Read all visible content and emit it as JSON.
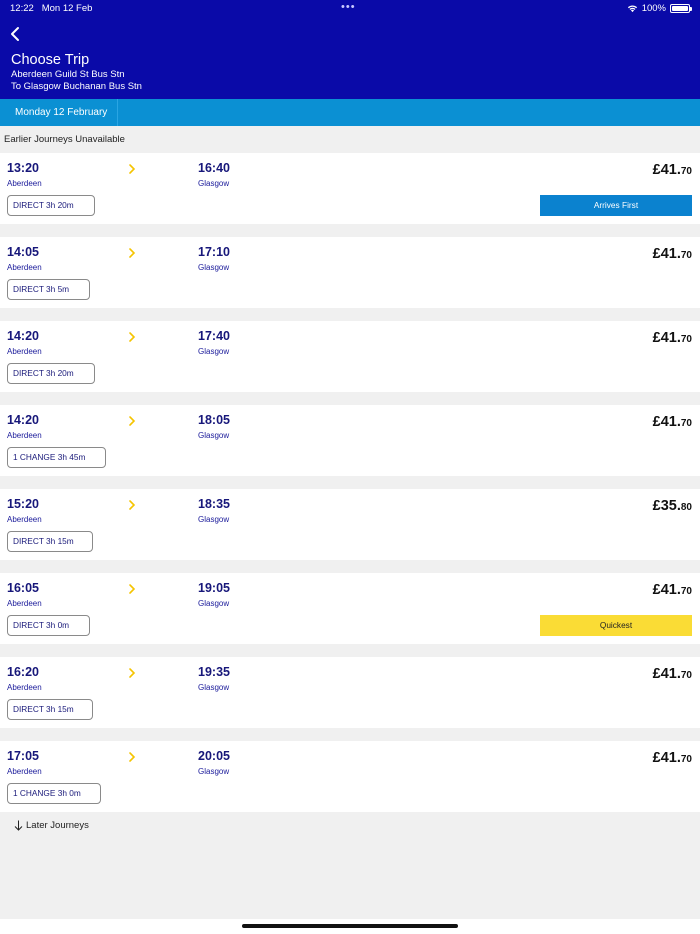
{
  "status": {
    "time": "12:22",
    "date": "Mon 12 Feb",
    "battery": "100%"
  },
  "header": {
    "title": "Choose Trip",
    "from": "Aberdeen Guild St Bus Stn",
    "to": "To Glasgow Buchanan Bus Stn"
  },
  "date_tab": "Monday 12 February",
  "earlier_label": "Earlier Journeys Unavailable",
  "later_label": "Later Journeys",
  "colors": {
    "header": "#0a0aa8",
    "date_bar": "#0b90d3",
    "arrives_first": "#0b82cf",
    "quickest": "#fadc35",
    "chevron": "#f5c400"
  },
  "journeys": [
    {
      "dep": "13:20",
      "dep_stop": "Aberdeen",
      "arr": "16:40",
      "arr_stop": "Glasgow",
      "price_main": "£41.",
      "price_pence": "70",
      "change": "DIRECT 3h 20m",
      "tag": "Arrives First"
    },
    {
      "dep": "14:05",
      "dep_stop": "Aberdeen",
      "arr": "17:10",
      "arr_stop": "Glasgow",
      "price_main": "£41.",
      "price_pence": "70",
      "change": "DIRECT 3h 5m"
    },
    {
      "dep": "14:20",
      "dep_stop": "Aberdeen",
      "arr": "17:40",
      "arr_stop": "Glasgow",
      "price_main": "£41.",
      "price_pence": "70",
      "change": "DIRECT 3h 20m"
    },
    {
      "dep": "14:20",
      "dep_stop": "Aberdeen",
      "arr": "18:05",
      "arr_stop": "Glasgow",
      "price_main": "£41.",
      "price_pence": "70",
      "change": "1 CHANGE 3h 45m"
    },
    {
      "dep": "15:20",
      "dep_stop": "Aberdeen",
      "arr": "18:35",
      "arr_stop": "Glasgow",
      "price_main": "£35.",
      "price_pence": "80",
      "change": "DIRECT 3h 15m"
    },
    {
      "dep": "16:05",
      "dep_stop": "Aberdeen",
      "arr": "19:05",
      "arr_stop": "Glasgow",
      "price_main": "£41.",
      "price_pence": "70",
      "change": "DIRECT 3h 0m",
      "tag": "Quickest"
    },
    {
      "dep": "16:20",
      "dep_stop": "Aberdeen",
      "arr": "19:35",
      "arr_stop": "Glasgow",
      "price_main": "£41.",
      "price_pence": "70",
      "change": "DIRECT 3h 15m"
    },
    {
      "dep": "17:05",
      "dep_stop": "Aberdeen",
      "arr": "20:05",
      "arr_stop": "Glasgow",
      "price_main": "£41.",
      "price_pence": "70",
      "change": "1 CHANGE 3h 0m"
    }
  ]
}
